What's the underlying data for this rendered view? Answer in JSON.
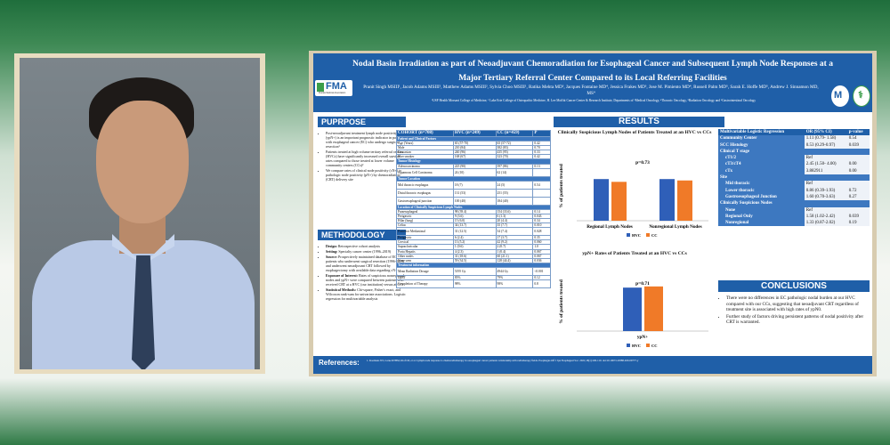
{
  "poster": {
    "title": "Nodal Basin Irradiation as part of Neoadjuvant Chemoradiation for Esophageal Cancer and Subsequent Lymph Node Responses at a Major Tertiary Referral Center Compared to its Local Referring Facilities",
    "logo_text": "FMA",
    "logo_subtext": "Florida Medical Association",
    "authors": "Pranit Singh MSIII¹, Jacob Adams MSIII¹, Matthew Adams MSIII², Sylvia Choo MSIII¹, Ratika Mehta MD³, Jacques Fontaine MD⁴, Jessica Frakes MD³, Jose M. Pimiento MD⁴, Russell Palm MD⁵, Sarah E. Hoffe MD⁵, Andrew J. Sinnamon MD, MS⁴",
    "affiliations": "¹USF Health Morsani College of Medicine, ² Lake Erie College of Osteopathic Medicine, H. Lee Moffitt Cancer Center & Research Institute, Departments of ³Medical Oncology, ⁴Thoracic Oncology, ⁵Radiation Oncology and ⁶Gastrointestinal Oncology",
    "purpose_heading": "PUPRPOSE",
    "purpose_bullets": [
      "Post-neoadjuvant treatment lymph node positivity (ypN+) is an important prognostic indicator in patients with esophageal cancer (EC) who undergo surgical resection¹",
      "Patients treated at high volume tertiary referral centers (HVCs) have significantly increased overall survival rates compared to those treated at lower volume community centers (CCs)²",
      "We compare rates of clinical node positivity (cN+) to pathologic node positivity (pN+) by chemoradiation (CRT) delivery site"
    ],
    "methodology_heading": "METHODOLOGY",
    "methodology_bullets": [
      {
        "label": "Design:",
        "text": " Retrospective cohort analysis"
      },
      {
        "label": "Setting:",
        "text": " Specialty cancer center (1996–2019)"
      },
      {
        "label": "Source:",
        "text": " Prospectively maintained database of EC patients who underwent surgical resection (1996-2019) and underwent neoadjuvant CRT followed by esophagectomy with available data regarding cN+"
      },
      {
        "label": "Exposure of Interest:",
        "text": " Rates of suspicious nonregional nodes and ypN+ were compared between patients who received CRT at a HVC (our institution) versus at CCs"
      },
      {
        "label": "Statistical Methods:",
        "text": " Chi-square, Fisher's exact, and Wilcoxon rank-sum for univariate associations. Logistic regression for multivariable analysis"
      }
    ],
    "cohort_table": {
      "headers": [
        "COHORT (n=708)",
        "HVC (n=249)",
        "CC (n=459)",
        "P"
      ],
      "rows": [
        {
          "type": "section",
          "label": "Patient and Clinical Factors"
        },
        {
          "cells": [
            "Age (Years)",
            "65 (57-70)",
            "65 (57-72)",
            "0.42"
          ]
        },
        {
          "cells": [
            "Male",
            "210 (84)",
            "382 (83)",
            "0.70"
          ]
        },
        {
          "cells": [
            "Caucasian",
            "240 (96)",
            "435 (95)",
            "0.33"
          ]
        },
        {
          "cells": [
            "Ever smoker",
            "168 (67)",
            "323 (70)",
            "0.42"
          ]
        },
        {
          "type": "section",
          "label": "Tumor Histology"
        },
        {
          "cells": [
            "Adenocarcinoma",
            "225 (90)",
            "397 (86)",
            "0.13"
          ]
        },
        {
          "cells": [
            "Squamous Cell Carcinoma",
            "24 (10)",
            "62 (14)",
            ""
          ],
          "tall": true
        },
        {
          "type": "section",
          "label": "Tumor Location"
        },
        {
          "cells": [
            "Mid thoracic esophagus",
            "18 (7)",
            "24 (5)",
            "0.54"
          ],
          "tall": true
        },
        {
          "cells": [
            "Distal thoracic esophagus",
            "131 (53)",
            "251 (55)",
            ""
          ],
          "tall": true
        },
        {
          "cells": [
            "Gastroesophageal junction",
            "100 (40)",
            "184 (40)",
            ""
          ],
          "tall": true
        },
        {
          "type": "section",
          "label": "Location of Clinically Suspicious Lymph Nodes"
        },
        {
          "cells": [
            "Paraesophageal",
            "98 (39.4)",
            "154 (33.6)",
            "0.14"
          ]
        },
        {
          "cells": [
            "Perigastric",
            "9 (3.6)",
            "6 (1.3)",
            "0.043"
          ]
        },
        {
          "cells": [
            "Hilar (lung)",
            "15 (6.0)",
            "20 (4.4)",
            "0.34"
          ]
        },
        {
          "cells": [
            "Celiac",
            "34 (13.7)",
            "35 (7.7)",
            "0.010"
          ]
        },
        {
          "cells": [
            "Posterior Mediastinal",
            "31 (12.5)",
            "34 (7.4)",
            "0.028"
          ],
          "tall": true
        },
        {
          "cells": [
            "Perigastric",
            "6 (2.4)",
            "17 (3.7)",
            "0.35"
          ]
        },
        {
          "cells": [
            "Cervical",
            "13 (5.2)",
            "42 (9.2)",
            "0.060"
          ]
        },
        {
          "cells": [
            "Supraclavicular",
            "1 (0.6)",
            "2 (0.7)",
            "1.0"
          ]
        },
        {
          "cells": [
            "Porta Hepatis",
            "4 (2.3)",
            "1 (0.4)",
            "0.067"
          ]
        },
        {
          "cells": [
            "Other nodes",
            "31 (18.6)",
            "60 (21.1)",
            "0.067"
          ]
        },
        {
          "cells": [
            "None seen",
            "59 (34.5)",
            "128 (44.4)",
            "0.036"
          ]
        },
        {
          "type": "section",
          "label": "Treatment information"
        },
        {
          "cells": [
            "Mean Radiation Dosage",
            "5195 Gy",
            "4944 Gy",
            "<0.001"
          ],
          "tall": true
        },
        {
          "cells": [
            "IMRT",
            "83%",
            "79%",
            "0.12"
          ]
        },
        {
          "cells": [
            "Completion of Therapy",
            "98%",
            "98%",
            "0.8"
          ],
          "tall": true
        }
      ]
    },
    "results_heading": "RESULTS",
    "chart1": {
      "title": "Clinically Suspicious Lymph Nodes of Patients Treated at an HVC vs CCs",
      "annotation": "p=0.73",
      "ylabel": "% of patients treated",
      "colors": {
        "HVC": "#2f5fb8",
        "CC": "#f07a28"
      },
      "legend": [
        "HVC",
        "CC"
      ]
    },
    "chart2": {
      "title": "ypN+ Rates of Patients Treated at an HVC vs CCs",
      "annotation": "p=0.71",
      "ylabel": "% of patients treated",
      "colors": {
        "HVC": "#2f5fb8",
        "CC": "#f07a28"
      },
      "legend": [
        "HVC",
        "CC"
      ]
    },
    "chart_data": [
      {
        "type": "bar",
        "title": "Clinically Suspicious Lymph Nodes of Patients Treated at an HVC vs CCs",
        "categories": [
          "Regional Lymph Nodes",
          "Nonregional Lymph Nodes"
        ],
        "series": [
          {
            "name": "HVC",
            "values": [
              60,
              60
            ]
          },
          {
            "name": "CC",
            "values": [
              56,
              58
            ]
          }
        ],
        "ylim": [
          0,
          100
        ],
        "ylabel": "% of patients treated",
        "grid": false,
        "legend": "bottom"
      },
      {
        "type": "bar",
        "title": "ypN+ Rates of Patients Treated at an HVC vs CCs",
        "categories": [
          "ypN+"
        ],
        "series": [
          {
            "name": "HVC",
            "values": [
              74
            ]
          },
          {
            "name": "CC",
            "values": [
              76
            ]
          }
        ],
        "ylim": [
          0,
          100
        ],
        "ylabel": "% of patients treated",
        "grid": false,
        "legend": "bottom"
      }
    ],
    "regression_table": {
      "headers": [
        "Multivariable Logistic Regression",
        "OR (95% CI)",
        "p-value"
      ],
      "rows": [
        {
          "cells": [
            "Community Center",
            "1.11 (0.79- 1.58)",
            "0.54"
          ],
          "type": "mixed"
        },
        {
          "cells": [
            "SCC Histology",
            "0.53 (0.29-0.97)",
            "0.039"
          ],
          "type": "mixed"
        },
        {
          "type": "section",
          "label": "Clinical T stage"
        },
        {
          "cells": [
            "cT1/2",
            "Ref",
            ""
          ],
          "type": "sub"
        },
        {
          "cells": [
            "cT3/cT4",
            "2.45 (1.50- 4.00)",
            "0.00"
          ],
          "type": "sub"
        },
        {
          "cells": [
            "cTx",
            "3.882911",
            "0.00"
          ],
          "type": "sub"
        },
        {
          "type": "section",
          "label": "Site"
        },
        {
          "cells": [
            "Mid thoracic",
            "Ref",
            ""
          ],
          "type": "sub"
        },
        {
          "cells": [
            "Lower thoracic",
            "0.86 (0.39-1.93)",
            "0.72"
          ],
          "type": "sub"
        },
        {
          "cells": [
            "Gastroesophageal Junction",
            "1.60 (0.70-3.63)",
            "0.27"
          ],
          "type": "sub"
        },
        {
          "type": "section",
          "label": "Clinically Suspicious Nodes"
        },
        {
          "cells": [
            "None",
            "Ref",
            ""
          ],
          "type": "sub"
        },
        {
          "cells": [
            "Regional Only",
            "1.58 (1.02-2.42)",
            "0.039"
          ],
          "type": "sub"
        },
        {
          "cells": [
            "Nonregional",
            "1.33 (0.87-2.02)",
            "0.19"
          ],
          "type": "sub"
        }
      ]
    },
    "conclusions_heading": "CONCLUSIONS",
    "conclusions_bullets": [
      "There were no differences in EC pathologic nodal burden at our HVC compared with our CCs, suggesting that neoadjuvant CRT regardless of treatment site is associated with high rates of ypN0.",
      "Further study of factors driving persistent patterns of nodal positivity after CRT is warranted."
    ],
    "references_label": "References:",
    "references_text": "1. Koemans WJ, Larue RTHM, Kloft M, et al. Lymph node response to chemoradiotherapy in oesophageal cancer patients: relationship with radiotherapy fields. Esophagus Off J Jpn Esophageal Soc. 2021;18(1):100-110. doi:10.1007/s10388-020-00777-y"
  }
}
